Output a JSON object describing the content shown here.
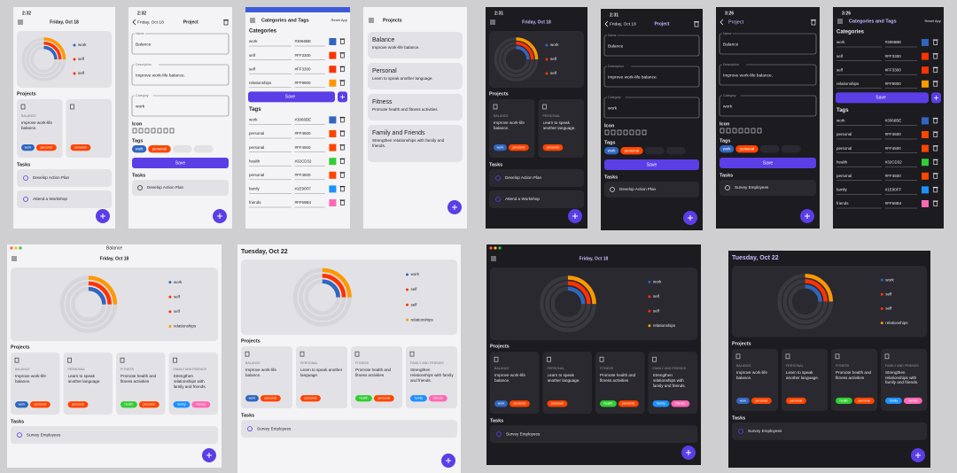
{
  "colors": {
    "work": "#3066BE",
    "personal": "#FF4500",
    "self": "#FF3300",
    "relationships": "#FF9900",
    "health": "#32CD32",
    "family": "#1E90FF",
    "friends": "#FF69B4"
  },
  "screens": [
    {
      "background": "#f4f4f6",
      "status_time": "2:32",
      "date": "Friday, Oct 18",
      "legend": [
        "work",
        "self",
        "self"
      ],
      "projects_heading": "Projects",
      "projects": [
        {
          "label": "BALANCE",
          "description": "Improve work-life balance.",
          "tags": [
            "work",
            "personal"
          ]
        },
        {
          "tags": [
            "personal"
          ]
        }
      ],
      "tasks_heading": "Tasks",
      "tasks": [
        "Develop Action Plan",
        "Attend a Workshop"
      ]
    },
    {
      "background": "#f4f4f6",
      "status_time": "2:32",
      "back": "Friday, Oct 18",
      "title": "Project",
      "fields": [
        {
          "label": "Name",
          "value": "Balance"
        },
        {
          "label": "Description",
          "value": "Improve work-life balance."
        },
        {
          "label": "Category",
          "value": "work"
        }
      ],
      "icon_heading": "Icon",
      "tags_heading": "Tags",
      "tag_chips": [
        "work",
        "personal"
      ],
      "save": "Save",
      "tasks_heading": "Tasks",
      "tasks": [
        "Develop Action Plan"
      ]
    },
    {
      "background": "#f4f4f6",
      "title": "Categories and Tags",
      "reset": "Reset App",
      "categories_heading": "Categories",
      "categories": [
        {
          "name": "work",
          "color": "#3066BE"
        },
        {
          "name": "self",
          "color": "#FF3300"
        },
        {
          "name": "self",
          "color": "#FF3300"
        },
        {
          "name": "relationships",
          "color": "#FF9900"
        }
      ],
      "save": "Save",
      "tags_heading": "Tags",
      "tags": [
        {
          "name": "work",
          "color": "#3066BE"
        },
        {
          "name": "personal",
          "color": "#FF4500"
        },
        {
          "name": "personal",
          "color": "#FF4500"
        },
        {
          "name": "health",
          "color": "#32CD32"
        },
        {
          "name": "personal",
          "color": "#FF4500"
        },
        {
          "name": "family",
          "color": "#1E90FF"
        },
        {
          "name": "friends",
          "color": "#FF69B4"
        }
      ]
    },
    {
      "background": "#f4f4f6",
      "title": "Projects",
      "projects": [
        {
          "name": "Balance",
          "description": "Improve work-life balance."
        },
        {
          "name": "Personal",
          "description": "Learn to speak another language."
        },
        {
          "name": "Fitness",
          "description": "Promote health and fitness activities"
        },
        {
          "name": "Family and Friends",
          "description": "Strengthen relationships with family and friends."
        }
      ]
    },
    {
      "background": "#1c1b1f",
      "status_time": "2:31",
      "date": "Friday, Oct 18",
      "legend": [
        "work",
        "self",
        "self"
      ],
      "projects_heading": "Projects",
      "projects": [
        {
          "label": "BALANCE",
          "description": "Improve work-life balance.",
          "tags": [
            "work",
            "personal"
          ]
        },
        {
          "label": "PERSONAL",
          "description": "Learn to speak another language.",
          "tags": [
            "personal"
          ]
        }
      ],
      "tasks_heading": "Tasks",
      "tasks": [
        "Develop Action Plan",
        "Attend a Workshop"
      ]
    },
    {
      "background": "#1c1b1f",
      "status_time": "2:31",
      "back": "Friday, Oct 18",
      "title": "Project",
      "fields": [
        {
          "label": "Name",
          "value": "Balance"
        },
        {
          "label": "Description",
          "value": "Improve work-life balance."
        },
        {
          "label": "Category",
          "value": "work"
        }
      ],
      "icon_heading": "Icon",
      "tags_heading": "Tags",
      "tag_chips": [
        "work",
        "personal"
      ],
      "save": "Save",
      "tasks_heading": "Tasks",
      "tasks": [
        "Develop Action Plan"
      ]
    },
    {
      "background": "#1c1b1f",
      "status_time": "3:26",
      "title": "Project",
      "fields": [
        {
          "label": "Name",
          "value": "Balance"
        },
        {
          "label": "Description",
          "value": "Improve work-life balance."
        },
        {
          "label": "Category",
          "value": "work"
        }
      ],
      "icon_heading": "Icon",
      "tags_heading": "Tags",
      "tag_chips": [
        "work",
        "personal"
      ],
      "save": "Save",
      "tasks_heading": "Tasks",
      "tasks": [
        "Survey Employees"
      ]
    },
    {
      "background": "#1c1b1f",
      "status_time": "3:26",
      "title": "Categories and Tags",
      "reset": "Reset App",
      "categories_heading": "Categories",
      "categories": [
        {
          "name": "work",
          "color": "#3066BE"
        },
        {
          "name": "self",
          "color": "#FF3300"
        },
        {
          "name": "self",
          "color": "#FF3300"
        },
        {
          "name": "relationships",
          "color": "#FF9900"
        }
      ],
      "save": "Save",
      "tags_heading": "Tags",
      "tags": [
        {
          "name": "work",
          "color": "#3066BE"
        },
        {
          "name": "personal",
          "color": "#FF4500"
        },
        {
          "name": "personal",
          "color": "#FF4500"
        },
        {
          "name": "health",
          "color": "#32CD32"
        },
        {
          "name": "personal",
          "color": "#FF4500"
        },
        {
          "name": "family",
          "color": "#1E90FF"
        },
        {
          "name": "friends",
          "color": "#FF69B4"
        }
      ]
    },
    {
      "background": "#f4f4f6",
      "window_title": "Balance",
      "date": "Friday, Oct 18",
      "legend": [
        "work",
        "self",
        "self",
        "relationships"
      ],
      "projects_heading": "Projects",
      "projects": [
        {
          "label": "BALANCE",
          "description": "Improve work-life balance.",
          "tags": [
            "work",
            "personal"
          ]
        },
        {
          "label": "PERSONAL",
          "description": "Learn to speak another language.",
          "tags": [
            "personal"
          ]
        },
        {
          "label": "FITNESS",
          "description": "Promote health and fitness activities",
          "tags": [
            "health",
            "personal"
          ]
        },
        {
          "label": "FAMILY AND FRIENDS",
          "description": "Strengthen relationships with family and friends.",
          "tags": [
            "family",
            "friends"
          ]
        }
      ],
      "tasks_heading": "Tasks",
      "tasks": [
        "Survey Employees"
      ]
    },
    {
      "background": "#f4f4f6",
      "date": "Tuesday, Oct 22",
      "legend": [
        "work",
        "self",
        "self",
        "relationships"
      ],
      "projects_heading": "Projects",
      "projects": [
        {
          "label": "BALANCE",
          "description": "Improve work-life balance.",
          "tags": [
            "work",
            "personal"
          ]
        },
        {
          "label": "PERSONAL",
          "description": "Learn to speak another language.",
          "tags": [
            "personal"
          ]
        },
        {
          "label": "FITNESS",
          "description": "Promote health and fitness activities",
          "tags": [
            "health",
            "personal"
          ]
        },
        {
          "label": "FAMILY AND FRIENDS",
          "description": "Strengthen relationships with family and friends.",
          "tags": [
            "family",
            "friends"
          ]
        }
      ],
      "tasks_heading": "Tasks",
      "tasks": [
        "Survey Employees"
      ]
    },
    {
      "background": "#1c1b1f",
      "date": "Friday, Oct 18",
      "legend": [
        "work",
        "self",
        "self",
        "relationships"
      ],
      "projects_heading": "Projects",
      "projects": [
        {
          "label": "BALANCE",
          "description": "Improve work-life balance.",
          "tags": [
            "work",
            "personal"
          ]
        },
        {
          "label": "PERSONAL",
          "description": "Learn to speak another language.",
          "tags": [
            "personal"
          ]
        },
        {
          "label": "FITNESS",
          "description": "Promote health and fitness activities",
          "tags": [
            "health",
            "personal"
          ]
        },
        {
          "label": "FAMILY AND FRIENDS",
          "description": "Strengthen relationships with family and friends.",
          "tags": [
            "family",
            "friends"
          ]
        }
      ],
      "tasks_heading": "Tasks",
      "tasks": [
        "Survey Employees"
      ]
    },
    {
      "background": "#1c1b1f",
      "date": "Tuesday, Oct 22",
      "legend": [
        "work",
        "self",
        "self",
        "relationships"
      ],
      "projects_heading": "Projects",
      "projects": [
        {
          "label": "BALANCE",
          "description": "Improve work-life balance.",
          "tags": [
            "work",
            "personal"
          ]
        },
        {
          "label": "PERSONAL",
          "description": "Learn to speak another language.",
          "tags": [
            "personal"
          ]
        },
        {
          "label": "FITNESS",
          "description": "Promote health and fitness activities",
          "tags": [
            "health",
            "personal"
          ]
        },
        {
          "label": "FAMILY AND FRIENDS",
          "description": "Strengthen relationships with family and friends.",
          "tags": [
            "family",
            "friends"
          ]
        }
      ],
      "tasks_heading": "Tasks",
      "tasks": [
        "Survey Employees"
      ]
    }
  ]
}
